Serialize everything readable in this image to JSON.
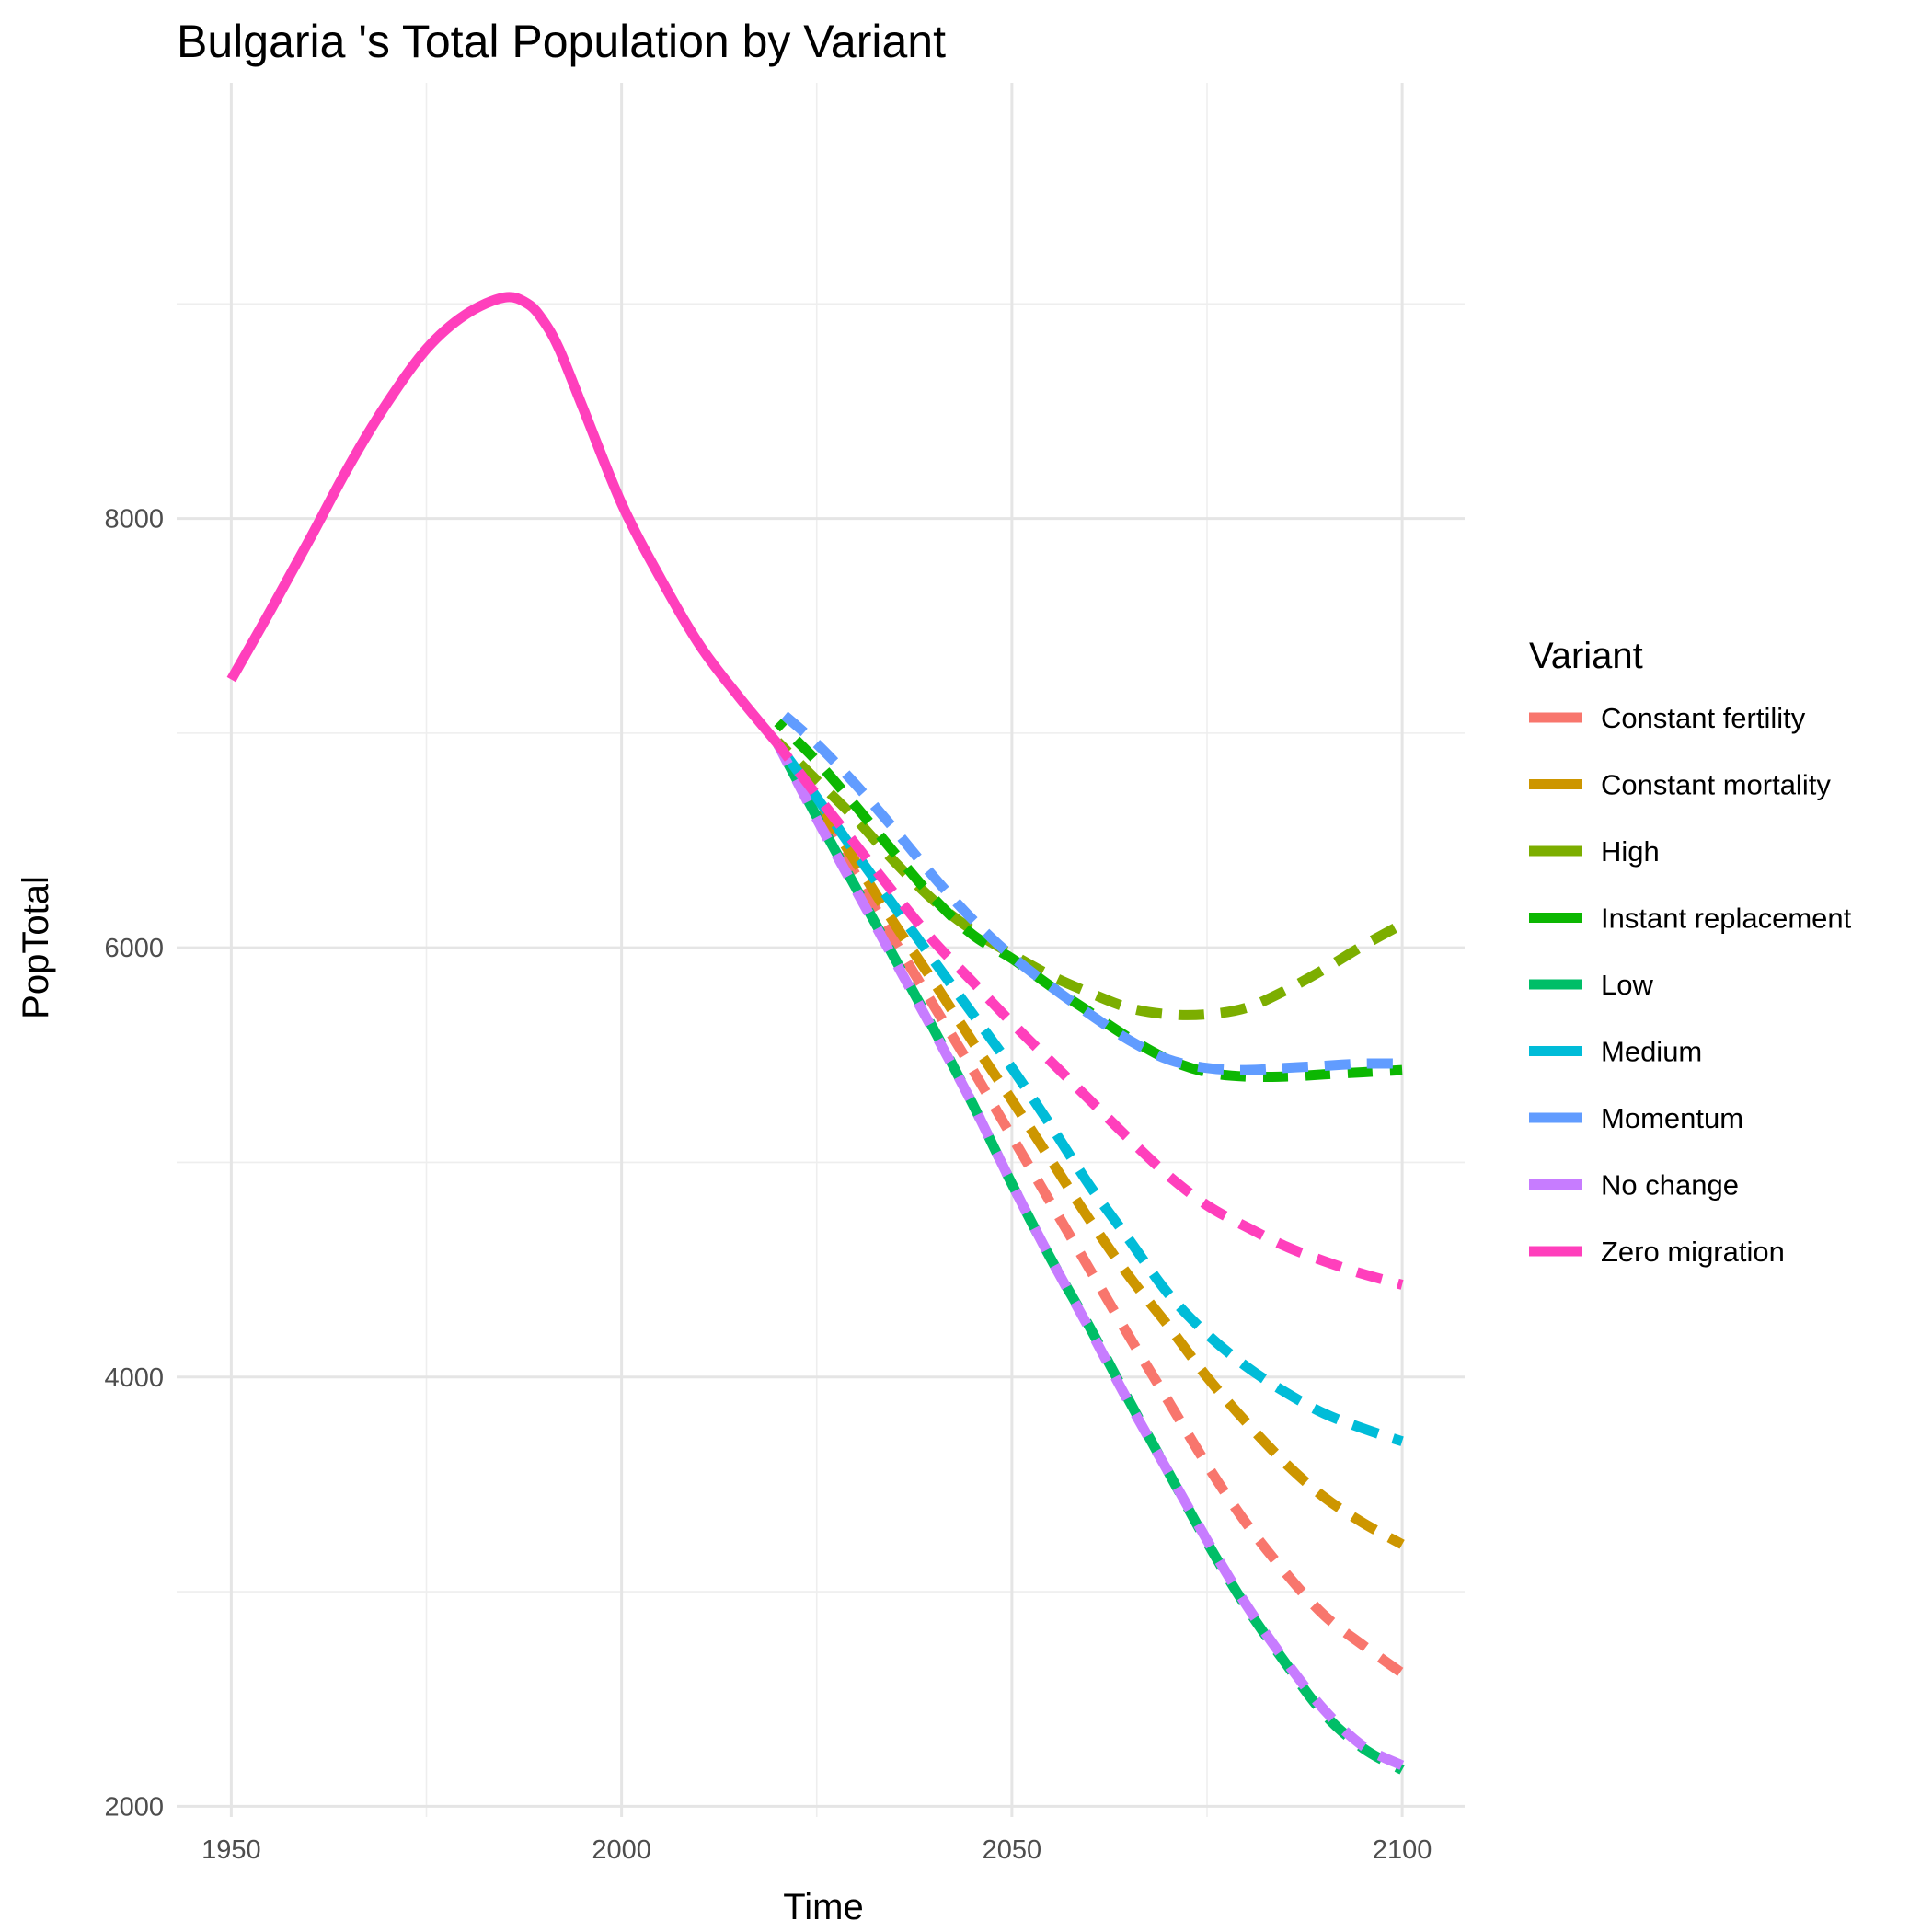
{
  "chart_data": {
    "type": "line",
    "title": "Bulgaria 's Total Population by Variant",
    "xlabel": "Time",
    "ylabel": "PopTotal",
    "xlim": [
      1943,
      2108
    ],
    "ylim": [
      1950,
      10030
    ],
    "x_ticks": [
      1950,
      2000,
      2050,
      2100
    ],
    "y_ticks": [
      2000,
      4000,
      6000,
      8000
    ],
    "grid": true,
    "legend": {
      "title": "Variant",
      "position": "right"
    },
    "history": {
      "variant": "Zero migration",
      "color": "#FF3FBC",
      "x": [
        1950,
        1955,
        1960,
        1965,
        1970,
        1975,
        1980,
        1985,
        1988,
        1990,
        1992,
        1995,
        2000,
        2005,
        2010,
        2015,
        2020
      ],
      "y": [
        7250,
        7570,
        7900,
        8240,
        8540,
        8790,
        8950,
        9030,
        9000,
        8920,
        8790,
        8520,
        8070,
        7720,
        7410,
        7170,
        6950
      ]
    },
    "x": [
      2020,
      2025,
      2030,
      2035,
      2040,
      2045,
      2050,
      2055,
      2060,
      2065,
      2070,
      2075,
      2080,
      2085,
      2090,
      2095,
      2100
    ],
    "series": [
      {
        "name": "Constant fertility",
        "color": "#F8766D",
        "values": [
          6950,
          6650,
          6340,
          6030,
          5730,
          5430,
          5120,
          4810,
          4500,
          4190,
          3890,
          3590,
          3320,
          3090,
          2890,
          2750,
          2620
        ]
      },
      {
        "name": "Constant mortality",
        "color": "#CD9600",
        "values": [
          6950,
          6680,
          6400,
          6110,
          5840,
          5560,
          5290,
          5010,
          4730,
          4470,
          4240,
          4000,
          3790,
          3600,
          3440,
          3320,
          3220
        ]
      },
      {
        "name": "High",
        "color": "#7CAE00",
        "values": [
          6960,
          6780,
          6600,
          6400,
          6220,
          6080,
          5970,
          5870,
          5790,
          5720,
          5690,
          5690,
          5720,
          5800,
          5900,
          6010,
          6110
        ]
      },
      {
        "name": "Instant replacement",
        "color": "#0CB702",
        "values": [
          7050,
          6870,
          6660,
          6440,
          6230,
          6060,
          5950,
          5820,
          5700,
          5580,
          5480,
          5420,
          5400,
          5400,
          5410,
          5420,
          5430
        ]
      },
      {
        "name": "Low",
        "color": "#00BE67",
        "values": [
          6950,
          6610,
          6280,
          5950,
          5620,
          5270,
          4900,
          4550,
          4230,
          3890,
          3560,
          3230,
          2930,
          2670,
          2430,
          2270,
          2170
        ]
      },
      {
        "name": "Medium",
        "color": "#00BCD8",
        "values": [
          6950,
          6700,
          6440,
          6190,
          5940,
          5690,
          5440,
          5170,
          4890,
          4640,
          4390,
          4200,
          4050,
          3930,
          3830,
          3760,
          3700
        ]
      },
      {
        "name": "Momentum",
        "color": "#619CFF",
        "values": [
          7110,
          6950,
          6760,
          6550,
          6330,
          6130,
          5960,
          5820,
          5690,
          5570,
          5480,
          5440,
          5430,
          5440,
          5450,
          5460,
          5460
        ]
      },
      {
        "name": "No change",
        "color": "#C77CFF",
        "values": [
          6950,
          6600,
          6270,
          5940,
          5610,
          5270,
          4900,
          4550,
          4220,
          3880,
          3560,
          3240,
          2940,
          2680,
          2450,
          2280,
          2190
        ]
      },
      {
        "name": "Zero migration",
        "color": "#FF3FBC",
        "values": [
          6950,
          6710,
          6480,
          6250,
          6030,
          5840,
          5650,
          5470,
          5290,
          5110,
          4940,
          4800,
          4700,
          4610,
          4540,
          4480,
          4430
        ]
      }
    ]
  }
}
